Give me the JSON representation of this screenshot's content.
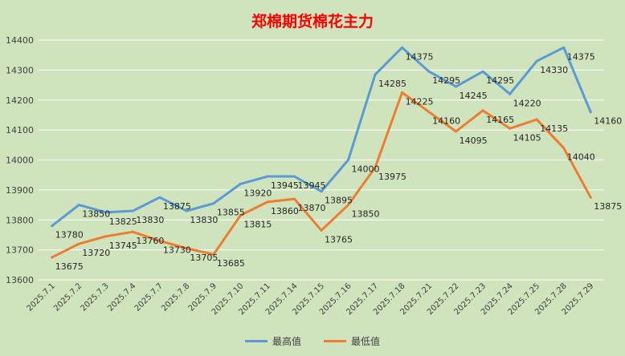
{
  "chart_data": {
    "type": "line",
    "title": "郑棉期货棉花主力",
    "categories": [
      "2025.7.1",
      "2025.7.2",
      "2025.7.3",
      "2025.7.4",
      "2025.7.7",
      "2025.7.8",
      "2025.7.9",
      "2025.7.10",
      "2025.7.11",
      "2025.7.14",
      "2025.7.15",
      "2025.7.16",
      "2025.7.17",
      "2025.7.18",
      "2025.7.21",
      "2025.7.22",
      "2025.7.23",
      "2025.7.24",
      "2025.7.25",
      "2025.7.28",
      "2025.7.29"
    ],
    "series": [
      {
        "name": "最高值",
        "color": "#5b9bd5",
        "values": [
          13780,
          13850,
          13825,
          13830,
          13875,
          13830,
          13855,
          13920,
          13945,
          13945,
          13895,
          14000,
          14285,
          14375,
          14295,
          14245,
          14295,
          14220,
          14330,
          14375,
          14160
        ]
      },
      {
        "name": "最低值",
        "color": "#ed7d31",
        "values": [
          13675,
          13720,
          13745,
          13760,
          13730,
          13705,
          13685,
          13815,
          13860,
          13870,
          13765,
          13850,
          13975,
          14225,
          14160,
          14095,
          14165,
          14105,
          14135,
          14040,
          13875
        ]
      }
    ],
    "ylim": [
      13600,
      14400
    ],
    "ytick_step": 100,
    "y_ticks": [
      "13600",
      "13700",
      "13800",
      "13900",
      "14000",
      "14100",
      "14200",
      "14300",
      "14400"
    ],
    "grid": "horizontal",
    "legend_position": "bottom",
    "data_labels": true
  }
}
